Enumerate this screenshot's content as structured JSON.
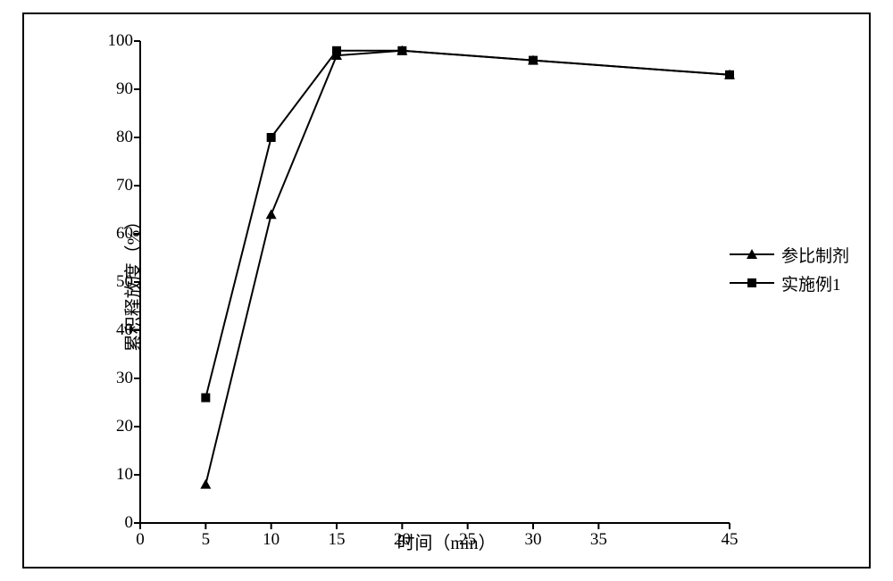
{
  "chart": {
    "type": "line",
    "xlabel": "时间（min）",
    "ylabel": "累积释放度（%）",
    "label_fontsize": 20,
    "tick_fontsize": 19,
    "xlim": [
      0,
      45
    ],
    "ylim": [
      0,
      100
    ],
    "xticks": [
      0,
      5,
      10,
      15,
      20,
      25,
      30,
      35,
      45
    ],
    "yticks": [
      0,
      10,
      20,
      30,
      40,
      50,
      60,
      70,
      80,
      90,
      100
    ],
    "background_color": "#ffffff",
    "axis_color": "#000000",
    "line_width": 2,
    "marker_size": 10,
    "border_width": 2,
    "series": [
      {
        "name": "参比制剂",
        "marker": "triangle",
        "color": "#000000",
        "x": [
          5,
          10,
          15,
          20,
          30,
          45
        ],
        "y": [
          8,
          64,
          97,
          98,
          96,
          93
        ]
      },
      {
        "name": "实施例1",
        "marker": "square",
        "color": "#000000",
        "x": [
          5,
          10,
          15,
          20,
          30,
          45
        ],
        "y": [
          26,
          80,
          98,
          98,
          96,
          93
        ]
      }
    ],
    "legend_position": "right-middle"
  }
}
